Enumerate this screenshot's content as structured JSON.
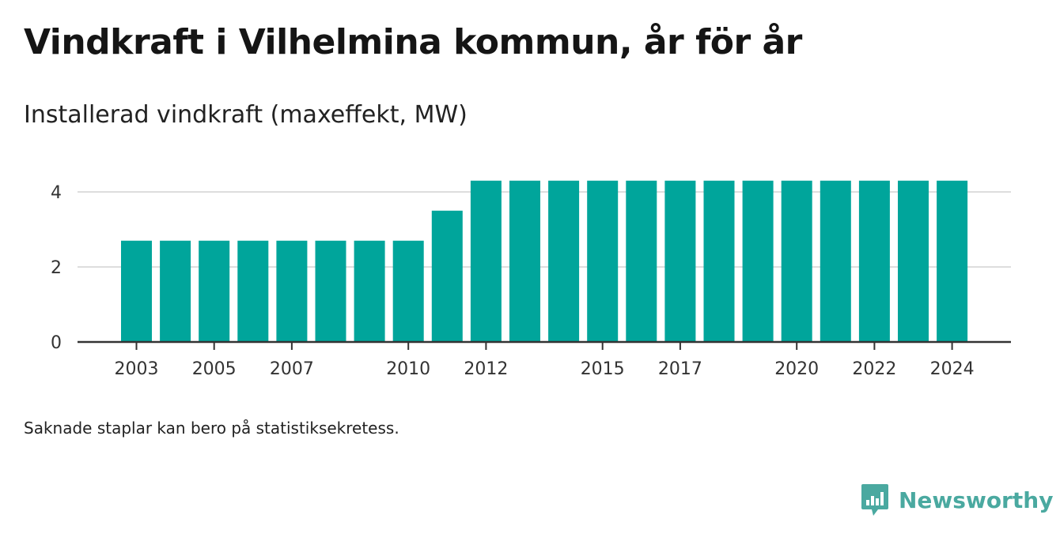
{
  "title": "Vindkraft i Vilhelmina kommun, år för år",
  "subtitle": "Installerad vindkraft (maxeffekt, MW)",
  "note": "Saknade staplar kan bero på statistiksekretess.",
  "brand": {
    "name": "Newsworthy",
    "icon": "newsworthy-logo-icon",
    "color": "#4aa9a0"
  },
  "colors": {
    "bar": "#00a59b",
    "grid": "#dddddd",
    "axis": "#333333"
  },
  "chart_data": {
    "type": "bar",
    "categories": [
      "2003",
      "2004",
      "2005",
      "2006",
      "2007",
      "2008",
      "2009",
      "2010",
      "2011",
      "2012",
      "2013",
      "2014",
      "2015",
      "2016",
      "2017",
      "2018",
      "2019",
      "2020",
      "2021",
      "2022",
      "2023",
      "2024"
    ],
    "values": [
      2.7,
      2.7,
      2.7,
      2.7,
      2.7,
      2.7,
      2.7,
      2.7,
      3.5,
      4.3,
      4.3,
      4.3,
      4.3,
      4.3,
      4.3,
      4.3,
      4.3,
      4.3,
      4.3,
      4.3,
      4.3,
      4.3
    ],
    "x_tick_labels": [
      "2003",
      "2005",
      "2007",
      "2010",
      "2012",
      "2015",
      "2017",
      "2020",
      "2022",
      "2024"
    ],
    "y_ticks": [
      0,
      2,
      4
    ],
    "ylim": [
      0,
      4.35
    ],
    "grid": true,
    "xlabel": "",
    "ylabel": ""
  }
}
